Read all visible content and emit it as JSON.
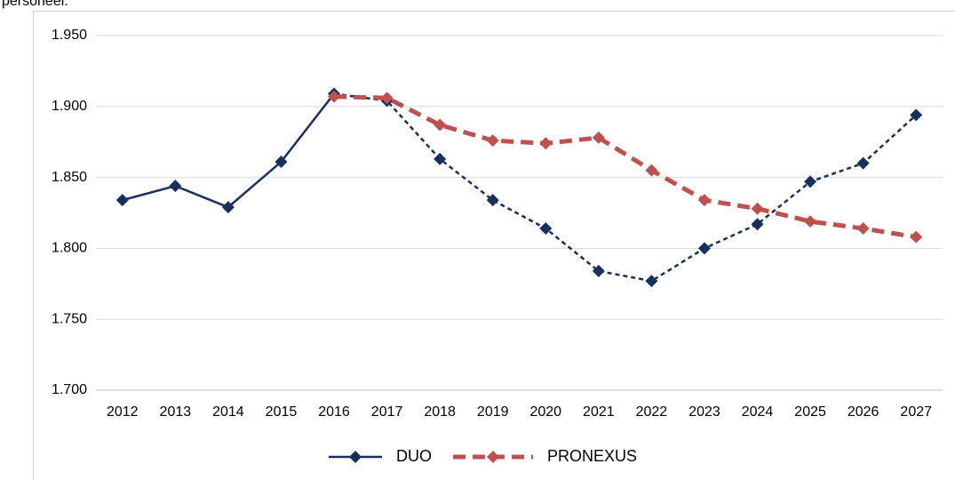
{
  "caption_text": "personeel.",
  "chart_data": {
    "type": "line",
    "categories": [
      "2012",
      "2013",
      "2014",
      "2015",
      "2016",
      "2017",
      "2018",
      "2019",
      "2020",
      "2021",
      "2022",
      "2023",
      "2024",
      "2025",
      "2026",
      "2027"
    ],
    "series": [
      {
        "name": "DUO",
        "color": "#17305f",
        "dash_from": "2016",
        "values": [
          1834,
          1844,
          1829,
          1861,
          1909,
          1904,
          1863,
          1834,
          1814,
          1784,
          1777,
          1800,
          1817,
          1847,
          1860,
          1894
        ]
      },
      {
        "name": "PRONEXUS",
        "color": "#c0504d",
        "dash_from": "2016",
        "values": [
          null,
          null,
          null,
          null,
          1907,
          1906,
          1887,
          1876,
          1874,
          1878,
          1855,
          1834,
          1828,
          1819,
          1814,
          1808
        ]
      }
    ],
    "ylim": [
      1700,
      1950
    ],
    "yticks": [
      {
        "value": 1700,
        "label": "1.700"
      },
      {
        "value": 1750,
        "label": "1.750"
      },
      {
        "value": 1800,
        "label": "1.800"
      },
      {
        "value": 1850,
        "label": "1.850"
      },
      {
        "value": 1900,
        "label": "1.900"
      },
      {
        "value": 1950,
        "label": "1.950"
      }
    ],
    "grid": true,
    "legend": "bottom"
  }
}
